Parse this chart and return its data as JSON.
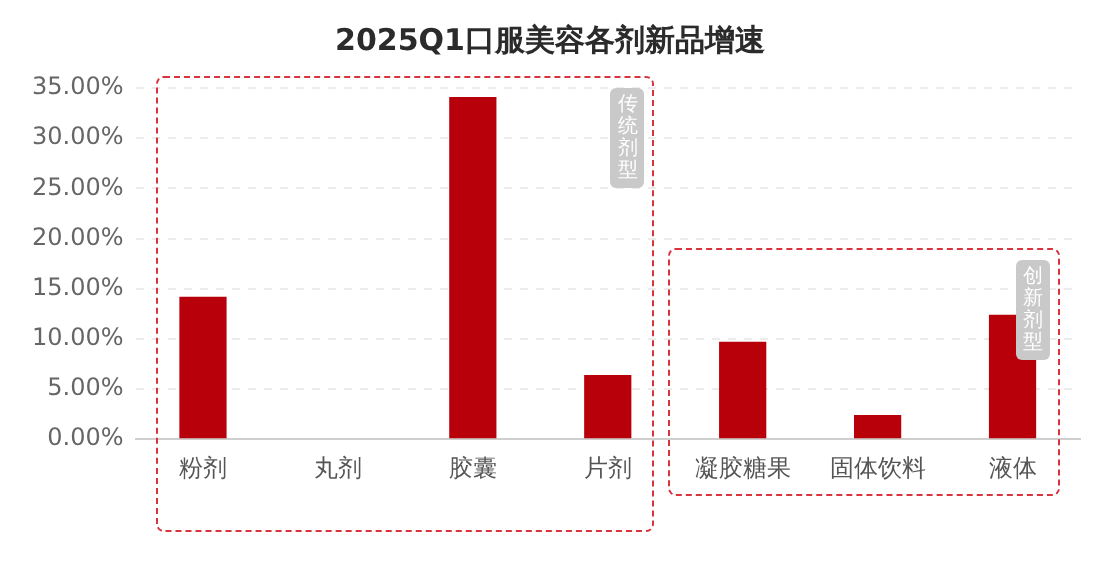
{
  "chart_data": {
    "type": "bar",
    "title": "2025Q1口服美容各剂新品增速",
    "categories": [
      "粉剂",
      "丸剂",
      "胶囊",
      "片剂",
      "凝胶糖果",
      "固体饮料",
      "液体"
    ],
    "values": [
      14.2,
      0,
      34.1,
      6.4,
      9.7,
      2.4,
      12.4
    ],
    "color": "#b8000b",
    "ylim": [
      0,
      35
    ],
    "yticks": [
      {
        "value": 0,
        "label": "0.00%"
      },
      {
        "value": 5,
        "label": "5.00%"
      },
      {
        "value": 10,
        "label": "10.00%"
      },
      {
        "value": 15,
        "label": "15.00%"
      },
      {
        "value": 20,
        "label": "20.00%"
      },
      {
        "value": 25,
        "label": "25.00%"
      },
      {
        "value": 30,
        "label": "30.00%"
      },
      {
        "value": 35,
        "label": "35.00%"
      }
    ],
    "grid": "y",
    "legend": false,
    "annotations": [
      "传统剂型",
      "创新剂型"
    ]
  }
}
